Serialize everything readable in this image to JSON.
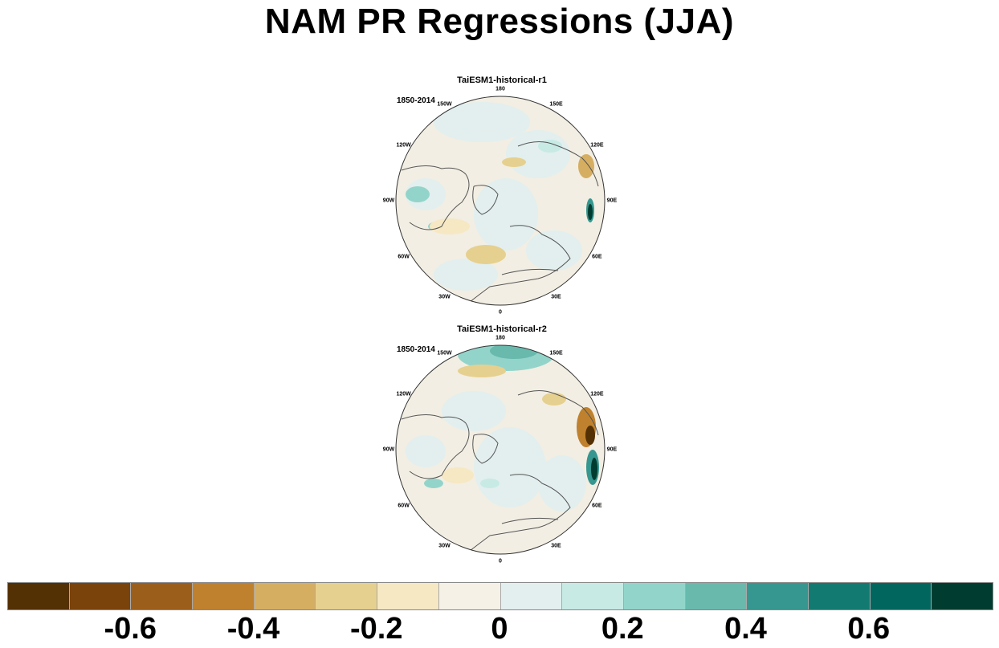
{
  "title": "NAM PR Regressions (JJA)",
  "panels": [
    {
      "title": "TaiESM1-historical-r1",
      "period": "1850-2014"
    },
    {
      "title": "TaiESM1-historical-r2",
      "period": "1850-2014"
    }
  ],
  "longitude_labels": [
    {
      "text": "180",
      "angle": 180
    },
    {
      "text": "150E",
      "angle": 150
    },
    {
      "text": "120E",
      "angle": 120
    },
    {
      "text": "90E",
      "angle": 90
    },
    {
      "text": "60E",
      "angle": 60
    },
    {
      "text": "30E",
      "angle": 30
    },
    {
      "text": "0",
      "angle": 0
    },
    {
      "text": "30W",
      "angle": -30
    },
    {
      "text": "60W",
      "angle": -60
    },
    {
      "text": "90W",
      "angle": -90
    },
    {
      "text": "120W",
      "angle": -120
    },
    {
      "text": "150W",
      "angle": -150
    }
  ],
  "colorbar": {
    "colors": [
      "#543005",
      "#7a430b",
      "#9c5e1b",
      "#bf812d",
      "#d6ae62",
      "#e6d08f",
      "#f5e8c3",
      "#f5f1e6",
      "#e2efee",
      "#c7eae5",
      "#93d4ca",
      "#69b9ad",
      "#35978f",
      "#137a71",
      "#01665e",
      "#003c30"
    ],
    "labels": [
      {
        "text": "-0.6",
        "index": 2
      },
      {
        "text": "-0.4",
        "index": 4
      },
      {
        "text": "-0.2",
        "index": 6
      },
      {
        "text": "0",
        "index": 8
      },
      {
        "text": "0.2",
        "index": 10
      },
      {
        "text": "0.4",
        "index": 12
      },
      {
        "text": "0.6",
        "index": 14
      }
    ]
  }
}
